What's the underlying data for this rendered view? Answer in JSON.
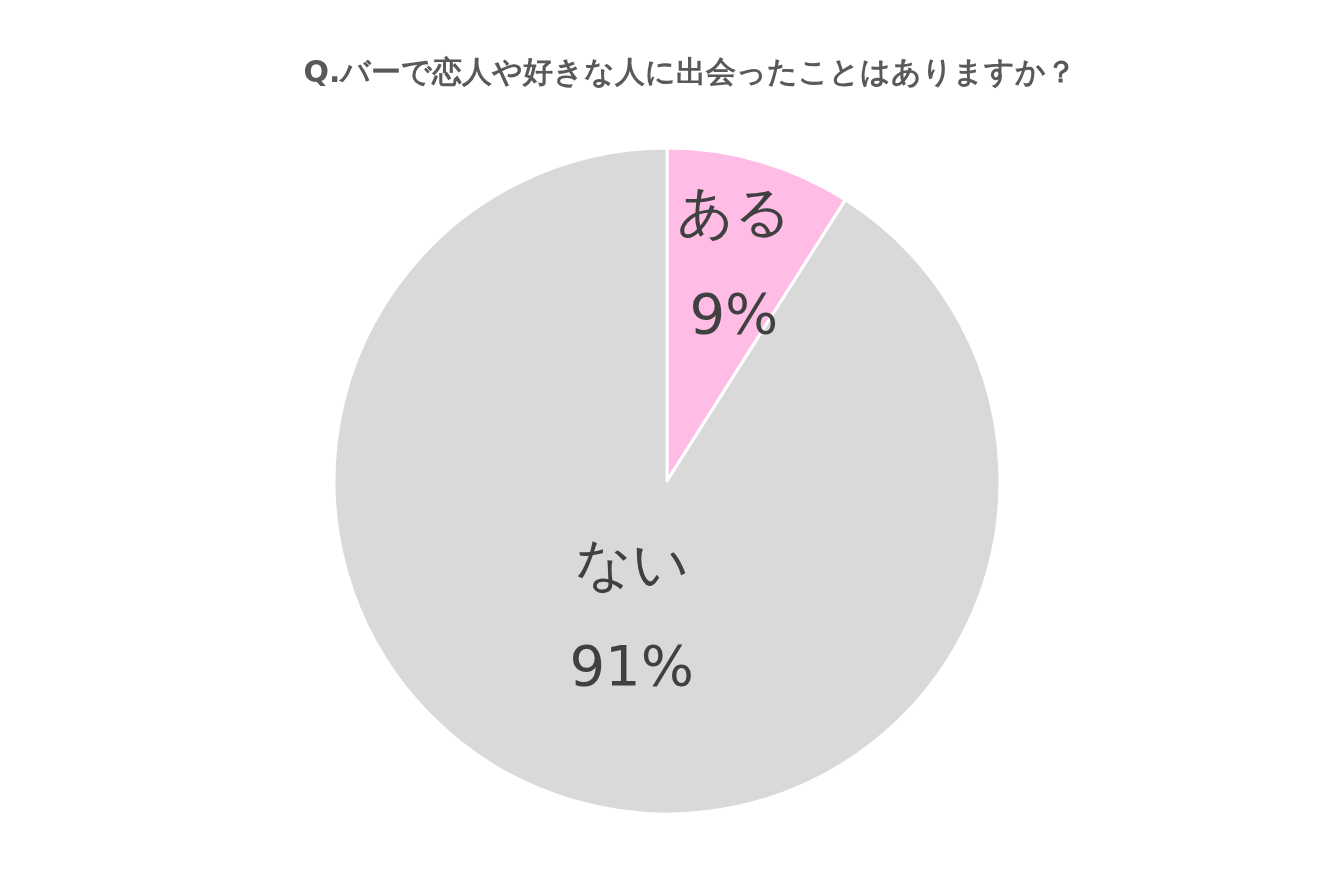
{
  "chart_data": {
    "type": "pie",
    "title": "Q.バーで恋人や好きな人に出会ったことはありますか？",
    "categories": [
      "ある",
      "ない"
    ],
    "values": [
      9,
      91
    ],
    "colors": [
      "#ffbde6",
      "#d9d9d9"
    ],
    "value_labels": [
      "9%",
      "91%"
    ]
  }
}
